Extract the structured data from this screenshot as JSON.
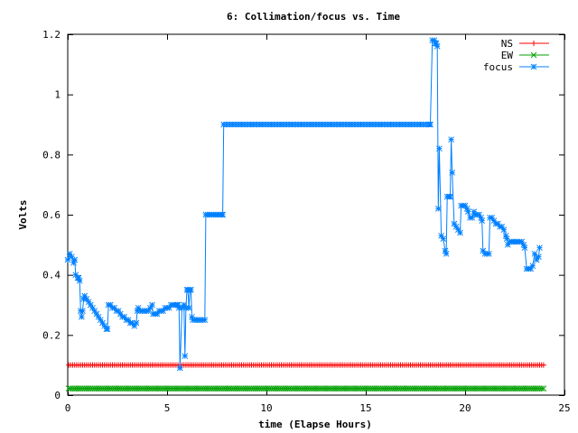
{
  "chart_data": {
    "type": "line",
    "title": "6: Collimation/focus vs. Time",
    "xlabel": "time (Elapse Hours)",
    "ylabel": "Volts",
    "xlim": [
      0,
      25
    ],
    "ylim": [
      0,
      1.2
    ],
    "xticks": [
      0,
      5,
      10,
      15,
      20,
      25
    ],
    "yticks": [
      0,
      0.2,
      0.4,
      0.6,
      0.8,
      1,
      1.2
    ],
    "xtick_labels": [
      "0",
      "5",
      "10",
      "15",
      "20",
      "25"
    ],
    "ytick_labels": [
      "0",
      "0.2",
      "0.4",
      "0.6",
      "0.8",
      "1",
      "1.2"
    ],
    "grid": false,
    "legend_position": "top-right",
    "series": [
      {
        "name": "NS",
        "color": "#ff0000",
        "marker": "plus",
        "constant": {
          "value": 0.1,
          "x_start": 0.05,
          "x_end": 23.95,
          "step": 0.1
        }
      },
      {
        "name": "EW",
        "color": "#00a000",
        "marker": "x",
        "constant": {
          "value": 0.022,
          "x_start": 0.05,
          "x_end": 23.95,
          "step": 0.1
        }
      },
      {
        "name": "focus",
        "color": "#0080ff",
        "marker": "star",
        "points": [
          [
            0.0,
            0.45
          ],
          [
            0.1,
            0.47
          ],
          [
            0.2,
            0.46
          ],
          [
            0.3,
            0.44
          ],
          [
            0.35,
            0.45
          ],
          [
            0.4,
            0.4
          ],
          [
            0.5,
            0.39
          ],
          [
            0.55,
            0.39
          ],
          [
            0.6,
            0.38
          ],
          [
            0.65,
            0.28
          ],
          [
            0.7,
            0.26
          ],
          [
            0.75,
            0.28
          ],
          [
            0.8,
            0.32
          ],
          [
            0.85,
            0.33
          ],
          [
            0.95,
            0.32
          ],
          [
            1.05,
            0.31
          ],
          [
            1.15,
            0.3
          ],
          [
            1.25,
            0.29
          ],
          [
            1.35,
            0.28
          ],
          [
            1.45,
            0.27
          ],
          [
            1.55,
            0.26
          ],
          [
            1.65,
            0.25
          ],
          [
            1.75,
            0.24
          ],
          [
            1.85,
            0.23
          ],
          [
            1.95,
            0.22
          ],
          [
            2.0,
            0.22
          ],
          [
            2.05,
            0.3
          ],
          [
            2.15,
            0.3
          ],
          [
            2.25,
            0.29
          ],
          [
            2.35,
            0.29
          ],
          [
            2.45,
            0.28
          ],
          [
            2.55,
            0.28
          ],
          [
            2.65,
            0.27
          ],
          [
            2.75,
            0.26
          ],
          [
            2.85,
            0.26
          ],
          [
            2.95,
            0.25
          ],
          [
            3.05,
            0.25
          ],
          [
            3.15,
            0.24
          ],
          [
            3.25,
            0.24
          ],
          [
            3.35,
            0.23
          ],
          [
            3.45,
            0.24
          ],
          [
            3.5,
            0.28
          ],
          [
            3.55,
            0.29
          ],
          [
            3.65,
            0.28
          ],
          [
            3.75,
            0.28
          ],
          [
            3.85,
            0.28
          ],
          [
            3.95,
            0.28
          ],
          [
            4.05,
            0.28
          ],
          [
            4.15,
            0.29
          ],
          [
            4.25,
            0.3
          ],
          [
            4.3,
            0.27
          ],
          [
            4.4,
            0.27
          ],
          [
            4.5,
            0.27
          ],
          [
            4.6,
            0.28
          ],
          [
            4.7,
            0.28
          ],
          [
            4.8,
            0.28
          ],
          [
            4.9,
            0.29
          ],
          [
            5.0,
            0.29
          ],
          [
            5.1,
            0.29
          ],
          [
            5.2,
            0.3
          ],
          [
            5.3,
            0.3
          ],
          [
            5.4,
            0.3
          ],
          [
            5.5,
            0.3
          ],
          [
            5.55,
            0.3
          ],
          [
            5.6,
            0.29
          ],
          [
            5.65,
            0.09
          ],
          [
            5.75,
            0.29
          ],
          [
            5.85,
            0.3
          ],
          [
            5.9,
            0.13
          ],
          [
            5.95,
            0.29
          ],
          [
            6.0,
            0.35
          ],
          [
            6.05,
            0.35
          ],
          [
            6.1,
            0.29
          ],
          [
            6.15,
            0.35
          ],
          [
            6.2,
            0.35
          ],
          [
            6.25,
            0.26
          ],
          [
            6.3,
            0.25
          ],
          [
            6.4,
            0.25
          ],
          [
            6.5,
            0.25
          ],
          [
            6.6,
            0.25
          ],
          [
            6.7,
            0.25
          ],
          [
            6.8,
            0.25
          ],
          [
            6.9,
            0.25
          ],
          [
            6.95,
            0.6
          ],
          [
            7.05,
            0.6
          ],
          [
            7.15,
            0.6
          ],
          [
            7.25,
            0.6
          ],
          [
            7.35,
            0.6
          ],
          [
            7.45,
            0.6
          ],
          [
            7.55,
            0.6
          ],
          [
            7.65,
            0.6
          ],
          [
            7.75,
            0.6
          ],
          [
            7.8,
            0.6
          ],
          [
            7.85,
            0.9
          ],
          [
            8.0,
            0.9
          ],
          [
            8.15,
            0.9
          ],
          [
            8.3,
            0.9
          ],
          [
            8.45,
            0.9
          ],
          [
            8.6,
            0.9
          ],
          [
            8.75,
            0.9
          ],
          [
            8.9,
            0.9
          ],
          [
            9.05,
            0.9
          ],
          [
            9.2,
            0.9
          ],
          [
            9.35,
            0.9
          ],
          [
            9.5,
            0.9
          ],
          [
            9.65,
            0.9
          ],
          [
            9.8,
            0.9
          ],
          [
            9.95,
            0.9
          ],
          [
            10.1,
            0.9
          ],
          [
            10.25,
            0.9
          ],
          [
            10.4,
            0.9
          ],
          [
            10.55,
            0.9
          ],
          [
            10.7,
            0.9
          ],
          [
            10.85,
            0.9
          ],
          [
            11.0,
            0.9
          ],
          [
            11.15,
            0.9
          ],
          [
            11.3,
            0.9
          ],
          [
            11.45,
            0.9
          ],
          [
            11.6,
            0.9
          ],
          [
            11.75,
            0.9
          ],
          [
            11.9,
            0.9
          ],
          [
            12.05,
            0.9
          ],
          [
            12.2,
            0.9
          ],
          [
            12.35,
            0.9
          ],
          [
            12.5,
            0.9
          ],
          [
            12.65,
            0.9
          ],
          [
            12.8,
            0.9
          ],
          [
            12.95,
            0.9
          ],
          [
            13.1,
            0.9
          ],
          [
            13.25,
            0.9
          ],
          [
            13.4,
            0.9
          ],
          [
            13.55,
            0.9
          ],
          [
            13.7,
            0.9
          ],
          [
            13.85,
            0.9
          ],
          [
            14.0,
            0.9
          ],
          [
            14.15,
            0.9
          ],
          [
            14.3,
            0.9
          ],
          [
            14.45,
            0.9
          ],
          [
            14.6,
            0.9
          ],
          [
            14.75,
            0.9
          ],
          [
            14.9,
            0.9
          ],
          [
            15.05,
            0.9
          ],
          [
            15.2,
            0.9
          ],
          [
            15.35,
            0.9
          ],
          [
            15.5,
            0.9
          ],
          [
            15.65,
            0.9
          ],
          [
            15.8,
            0.9
          ],
          [
            15.95,
            0.9
          ],
          [
            16.1,
            0.9
          ],
          [
            16.25,
            0.9
          ],
          [
            16.4,
            0.9
          ],
          [
            16.55,
            0.9
          ],
          [
            16.7,
            0.9
          ],
          [
            16.85,
            0.9
          ],
          [
            17.0,
            0.9
          ],
          [
            17.15,
            0.9
          ],
          [
            17.3,
            0.9
          ],
          [
            17.45,
            0.9
          ],
          [
            17.6,
            0.9
          ],
          [
            17.75,
            0.9
          ],
          [
            17.9,
            0.9
          ],
          [
            18.05,
            0.9
          ],
          [
            18.2,
            0.9
          ],
          [
            18.25,
            0.9
          ],
          [
            18.35,
            1.18
          ],
          [
            18.45,
            1.18
          ],
          [
            18.5,
            1.17
          ],
          [
            18.55,
            1.17
          ],
          [
            18.6,
            1.16
          ],
          [
            18.65,
            0.62
          ],
          [
            18.7,
            0.82
          ],
          [
            18.8,
            0.53
          ],
          [
            18.9,
            0.52
          ],
          [
            19.0,
            0.48
          ],
          [
            19.05,
            0.47
          ],
          [
            19.1,
            0.66
          ],
          [
            19.2,
            0.66
          ],
          [
            19.25,
            0.66
          ],
          [
            19.3,
            0.85
          ],
          [
            19.35,
            0.74
          ],
          [
            19.45,
            0.57
          ],
          [
            19.55,
            0.56
          ],
          [
            19.65,
            0.55
          ],
          [
            19.75,
            0.54
          ],
          [
            19.8,
            0.63
          ],
          [
            19.9,
            0.63
          ],
          [
            20.0,
            0.63
          ],
          [
            20.1,
            0.62
          ],
          [
            20.15,
            0.61
          ],
          [
            20.25,
            0.59
          ],
          [
            20.35,
            0.59
          ],
          [
            20.45,
            0.61
          ],
          [
            20.5,
            0.6
          ],
          [
            20.6,
            0.6
          ],
          [
            20.7,
            0.6
          ],
          [
            20.8,
            0.59
          ],
          [
            20.85,
            0.58
          ],
          [
            20.9,
            0.48
          ],
          [
            21.0,
            0.47
          ],
          [
            21.1,
            0.47
          ],
          [
            21.2,
            0.47
          ],
          [
            21.25,
            0.59
          ],
          [
            21.35,
            0.59
          ],
          [
            21.45,
            0.58
          ],
          [
            21.55,
            0.57
          ],
          [
            21.65,
            0.57
          ],
          [
            21.75,
            0.56
          ],
          [
            21.85,
            0.56
          ],
          [
            21.95,
            0.55
          ],
          [
            22.05,
            0.53
          ],
          [
            22.1,
            0.52
          ],
          [
            22.15,
            0.5
          ],
          [
            22.25,
            0.51
          ],
          [
            22.35,
            0.51
          ],
          [
            22.45,
            0.51
          ],
          [
            22.55,
            0.51
          ],
          [
            22.65,
            0.51
          ],
          [
            22.75,
            0.51
          ],
          [
            22.85,
            0.51
          ],
          [
            22.95,
            0.5
          ],
          [
            23.0,
            0.49
          ],
          [
            23.1,
            0.42
          ],
          [
            23.2,
            0.42
          ],
          [
            23.3,
            0.42
          ],
          [
            23.4,
            0.43
          ],
          [
            23.5,
            0.47
          ],
          [
            23.6,
            0.45
          ],
          [
            23.7,
            0.46
          ],
          [
            23.75,
            0.49
          ]
        ]
      }
    ]
  }
}
